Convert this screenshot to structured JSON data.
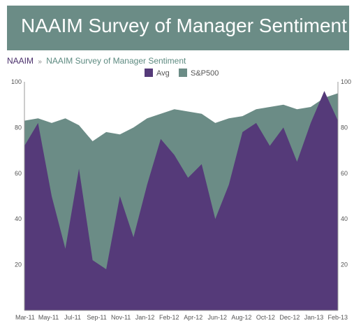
{
  "banner": {
    "title": "NAAIM Survey of Manager Sentiment"
  },
  "breadcrumb": {
    "home": "NAAIM",
    "separator": "»",
    "current": "NAAIM Survey of Manager Sentiment"
  },
  "colors": {
    "avg": "#553a79",
    "sp500": "#6b8c86",
    "banner": "#6b8c86",
    "axis": "#999999"
  },
  "chart_data": {
    "type": "area",
    "title": "",
    "xlabel": "",
    "ylabel": "",
    "ylim": [
      0,
      100
    ],
    "yticks": [
      20,
      40,
      60,
      80,
      100
    ],
    "legend_position": "top-center",
    "grid": false,
    "x_tick_labels": [
      "Mar-11",
      "May-11",
      "Jul-11",
      "Sep-11",
      "Nov-11",
      "Jan-12",
      "Feb-12",
      "Apr-12",
      "Jun-12",
      "Aug-12",
      "Oct-12",
      "Dec-12",
      "Jan-13",
      "Feb-13"
    ],
    "x": [
      "Mar-11",
      "Apr-11",
      "May-11",
      "Jun-11",
      "Jul-11",
      "Aug-11",
      "Sep-11",
      "Oct-11",
      "Nov-11",
      "Dec-11",
      "Jan-12",
      "Feb-12",
      "Mar-12",
      "Apr-12",
      "May-12",
      "Jun-12",
      "Jul-12",
      "Aug-12",
      "Sep-12",
      "Oct-12",
      "Nov-12",
      "Dec-12",
      "Jan-13",
      "Feb-13"
    ],
    "series": [
      {
        "name": "S&P500",
        "values": [
          83,
          84,
          82,
          84,
          81,
          74,
          78,
          77,
          80,
          84,
          86,
          88,
          87,
          86,
          82,
          84,
          85,
          88,
          89,
          90,
          88,
          89,
          93,
          95
        ]
      },
      {
        "name": "Avg",
        "values": [
          72,
          82,
          50,
          27,
          62,
          22,
          18,
          50,
          32,
          55,
          75,
          68,
          58,
          64,
          40,
          55,
          78,
          82,
          72,
          80,
          65,
          82,
          96,
          83
        ]
      }
    ]
  }
}
